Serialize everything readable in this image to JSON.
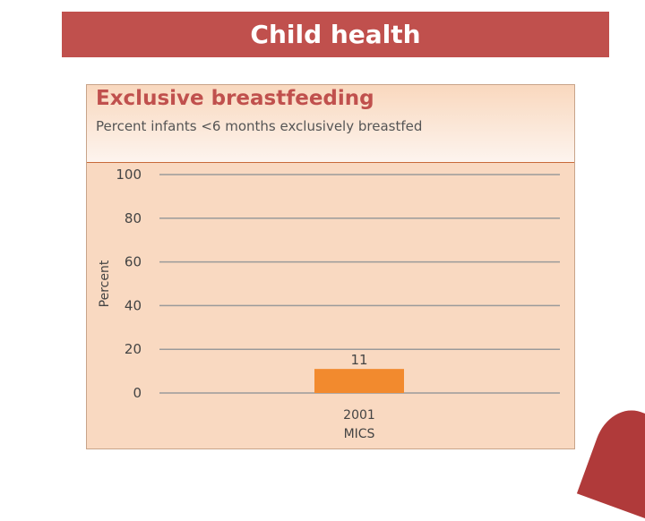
{
  "slide": {
    "title": "Child health"
  },
  "chart_data": {
    "type": "bar",
    "title": "Exclusive breastfeeding",
    "subtitle": "Percent infants <6 months exclusively breastfed",
    "ylabel": "Percent",
    "xlabel": "",
    "ylim": [
      0,
      100
    ],
    "yticks": [
      0,
      20,
      40,
      60,
      80,
      100
    ],
    "grid": true,
    "categories": [
      [
        "2001",
        "MICS"
      ]
    ],
    "values": [
      11
    ],
    "data_labels": [
      "11"
    ],
    "bar_color": "#f28a2e"
  }
}
